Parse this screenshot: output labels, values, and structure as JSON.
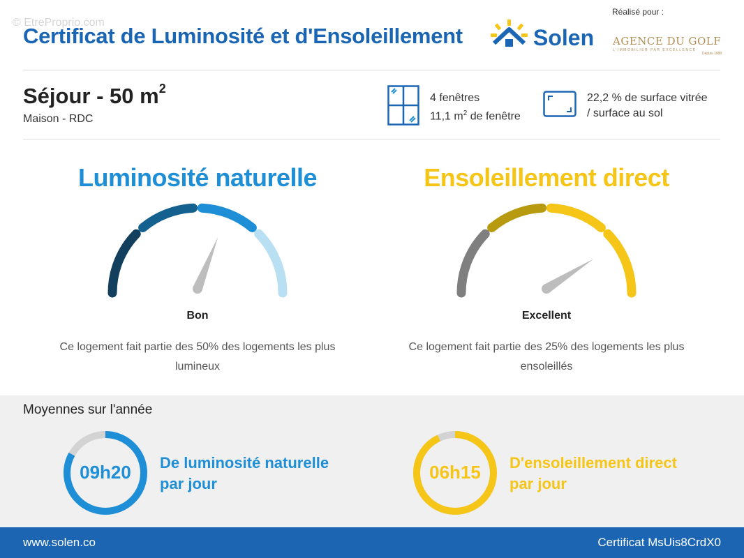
{
  "watermark": "© EtreProprio.com",
  "header": {
    "title": "Certificat de Luminosité et d'Ensoleillement",
    "brand": "Solen",
    "realise_pour": "Réalisé pour :",
    "agency_name": "AGENCE DU GOLF",
    "agency_tagline": "L'IMMOBILIER PAR EXCELLENCE",
    "agency_year": "Depuis 1988"
  },
  "room": {
    "title": "Séjour - 50 m",
    "title_sup": "2",
    "subtitle": "Maison - RDC"
  },
  "stats": {
    "windows_count": "4 fenêtres",
    "windows_area_prefix": "11,1 m",
    "windows_area_sup": "2",
    "windows_area_suffix": " de fenêtre",
    "glazed_line1": "22,2 % de surface vitrée",
    "glazed_line2": "/ surface au sol"
  },
  "luminosite": {
    "title": "Luminosité naturelle",
    "rating": "Bon",
    "description": "Ce logement fait partie des 50% des logements les plus lumineux",
    "needle_level": 0.62,
    "colors": [
      "#123f5e",
      "#14618f",
      "#1e8fd6",
      "#b9dff2"
    ]
  },
  "ensoleillement": {
    "title": "Ensoleillement direct",
    "rating": "Excellent",
    "description": "Ce logement fait partie des 25% des logements les plus ensoleillés",
    "needle_level": 0.82,
    "colors": [
      "#7f7f7f",
      "#b89a10",
      "#f5c518",
      "#f5c518"
    ]
  },
  "averages": {
    "title": "Moyennes sur l'année",
    "luminosite_value": "09h20",
    "luminosite_line1": "De luminosité naturelle",
    "luminosite_line2": "par jour",
    "luminosite_fraction": 0.83,
    "ensoleillement_value": "06h15",
    "ensoleillement_line1": "D'ensoleillement direct",
    "ensoleillement_line2": "par jour",
    "ensoleillement_fraction": 0.93
  },
  "colors": {
    "blue": "#1a66b5",
    "light_blue": "#1e8fd6",
    "yellow": "#f5c518",
    "footer": "#1b65b3"
  },
  "footer": {
    "website": "www.solen.co",
    "certificate": "Certificat MsUis8CrdX0"
  }
}
